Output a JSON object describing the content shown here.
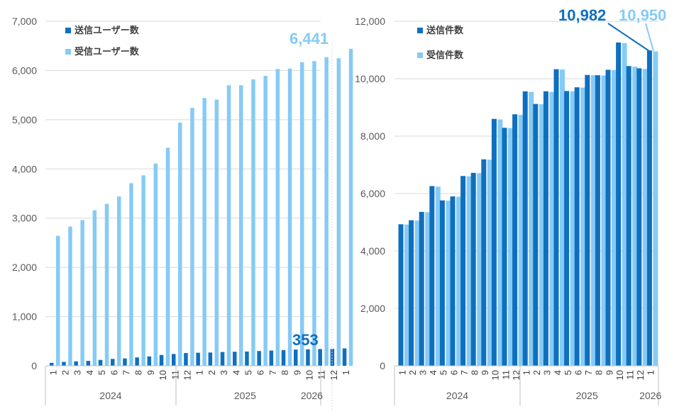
{
  "colors": {
    "send": "#0F6FBF",
    "recv": "#86CBF5",
    "grid": "#D9D9D9",
    "axis": "#BFBFBF"
  },
  "chart_data": [
    {
      "type": "bar",
      "id": "users",
      "legend": [
        "送信ユーザー数",
        "受信ユーザー数"
      ],
      "ylim": [
        0,
        7000
      ],
      "yticks": [
        "0",
        "1,000",
        "2,000",
        "3,000",
        "4,000",
        "5,000",
        "6,000",
        "7,000"
      ],
      "x_months": [
        "1",
        "2",
        "3",
        "4",
        "5",
        "6",
        "7",
        "8",
        "9",
        "10",
        "11",
        "12",
        "1",
        "2",
        "3",
        "4",
        "5",
        "6",
        "7",
        "8",
        "9",
        "10",
        "11",
        "12",
        "1"
      ],
      "x_years": [
        "2024",
        "2025",
        "2026"
      ],
      "series": [
        {
          "name": "送信ユーザー数",
          "values": [
            60,
            80,
            90,
            100,
            120,
            140,
            150,
            170,
            190,
            220,
            240,
            260,
            265,
            270,
            280,
            285,
            290,
            300,
            310,
            320,
            330,
            335,
            340,
            345,
            353
          ]
        },
        {
          "name": "受信ユーザー数",
          "values": [
            2640,
            2830,
            2960,
            3160,
            3290,
            3440,
            3710,
            3870,
            4110,
            4430,
            4940,
            5240,
            5440,
            5410,
            5700,
            5700,
            5820,
            5890,
            6030,
            6040,
            6170,
            6190,
            6270,
            6250,
            6441
          ]
        }
      ],
      "annotations": {
        "send_last": "353",
        "recv_last": "6,441"
      }
    },
    {
      "type": "bar",
      "id": "messages",
      "legend": [
        "送信件数",
        "受信件数"
      ],
      "ylim": [
        0,
        12000
      ],
      "yticks": [
        "0",
        "2,000",
        "4,000",
        "6,000",
        "8,000",
        "10,000",
        "12,000"
      ],
      "x_months": [
        "1",
        "2",
        "3",
        "4",
        "5",
        "6",
        "7",
        "8",
        "9",
        "10",
        "11",
        "12",
        "1",
        "2",
        "3",
        "4",
        "5",
        "6",
        "7",
        "8",
        "9",
        "10",
        "11",
        "12",
        "1"
      ],
      "x_years": [
        "2024",
        "2025",
        "2026"
      ],
      "series": [
        {
          "name": "送信件数",
          "values": [
            4930,
            5070,
            5360,
            6260,
            5760,
            5900,
            6610,
            6720,
            7190,
            8600,
            8290,
            8760,
            9560,
            9120,
            9560,
            10330,
            9570,
            9700,
            10130,
            10120,
            10310,
            11260,
            10440,
            10360,
            10982
          ]
        },
        {
          "name": "受信件数",
          "values": [
            4920,
            5060,
            5350,
            6240,
            5750,
            5890,
            6600,
            6710,
            7180,
            8580,
            8280,
            8740,
            9540,
            9110,
            9540,
            10320,
            9560,
            9690,
            10120,
            10110,
            10300,
            11240,
            10420,
            10340,
            10950
          ]
        }
      ],
      "annotations": {
        "send_last": "10,982",
        "recv_last": "10,950"
      }
    }
  ]
}
